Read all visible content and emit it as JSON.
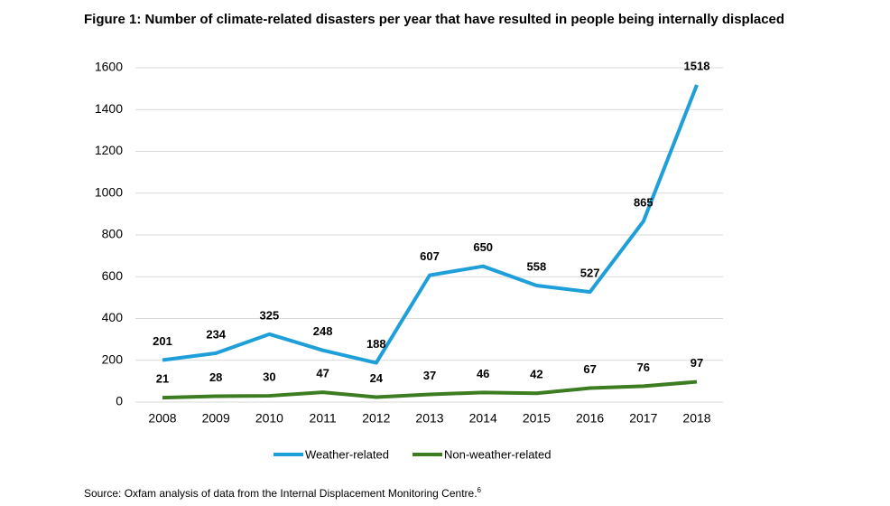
{
  "chart_data": {
    "type": "line",
    "title": "Figure 1: Number of climate-related disasters per year that have resulted in people being internally displaced",
    "source": "Source: Oxfam analysis of data from the Internal Displacement Monitoring Centre.",
    "source_footnote": "6",
    "categories": [
      "2008",
      "2009",
      "2010",
      "2011",
      "2012",
      "2013",
      "2014",
      "2015",
      "2016",
      "2017",
      "2018"
    ],
    "series": [
      {
        "name": "Weather-related",
        "color": "#1e9fd9",
        "values": [
          201,
          234,
          325,
          248,
          188,
          607,
          650,
          558,
          527,
          865,
          1518
        ]
      },
      {
        "name": "Non-weather-related",
        "color": "#3c7d22",
        "values": [
          21,
          28,
          30,
          47,
          24,
          37,
          46,
          42,
          67,
          76,
          97
        ]
      }
    ],
    "ylim": [
      0,
      1600
    ],
    "yticks": [
      0,
      200,
      400,
      600,
      800,
      1000,
      1200,
      1400,
      1600
    ],
    "grid": true,
    "legend": "bottom"
  }
}
